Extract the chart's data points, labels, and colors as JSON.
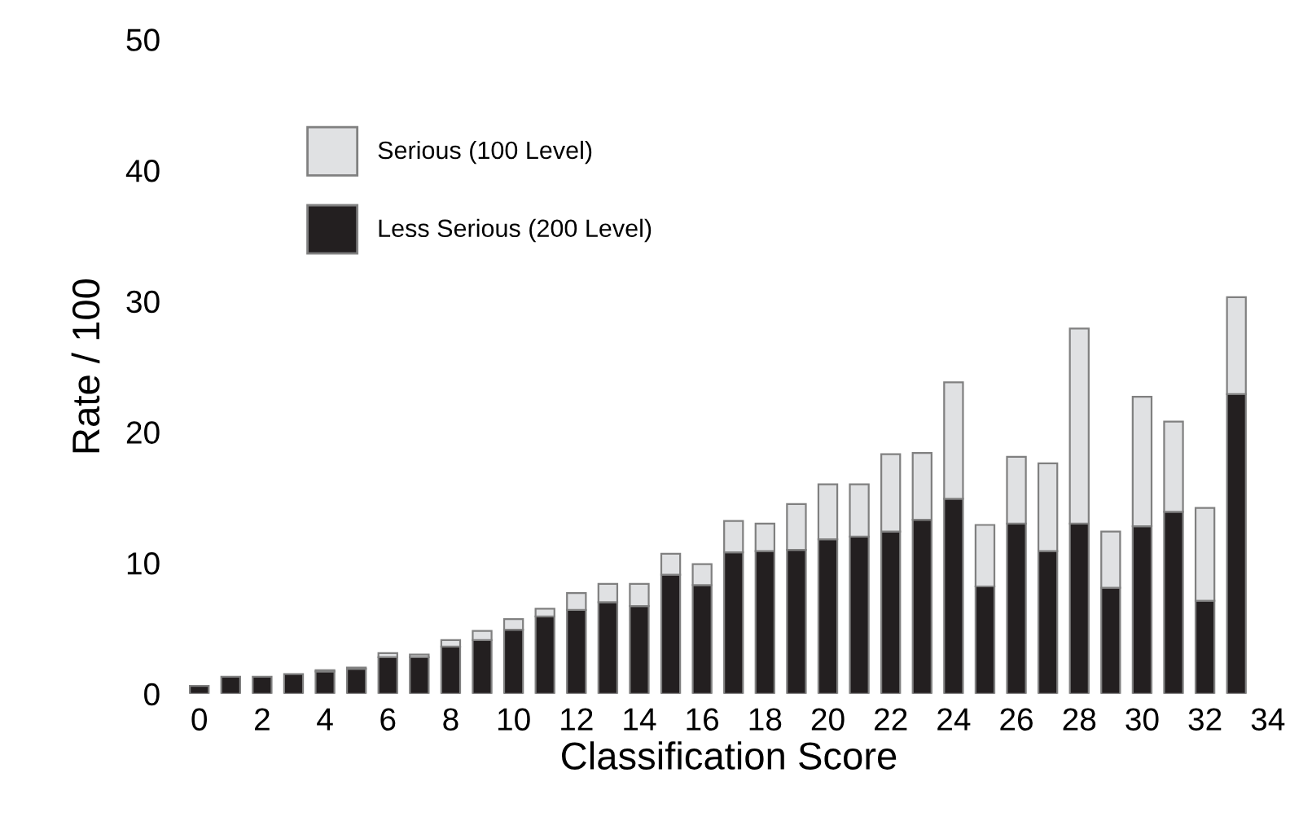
{
  "chart_data": {
    "type": "bar",
    "stacked": true,
    "xlabel": "Classification Score",
    "ylabel": "Rate / 100",
    "categories": [
      "0",
      null,
      "2",
      null,
      "4",
      null,
      "6",
      null,
      "8",
      null,
      "10",
      null,
      "12",
      null,
      "14",
      null,
      "16",
      null,
      "18",
      null,
      "20",
      null,
      "22",
      null,
      "24",
      null,
      "26",
      null,
      "28",
      null,
      "30",
      null,
      "32",
      null,
      "34"
    ],
    "series": [
      {
        "name": "Less Serious (200 Level)",
        "color": "#231f20",
        "values": [
          0.6,
          1.3,
          1.3,
          1.5,
          1.7,
          1.9,
          2.8,
          2.8,
          3.6,
          4.1,
          4.9,
          5.9,
          6.4,
          7.0,
          6.7,
          9.1,
          8.3,
          10.8,
          10.9,
          11.0,
          11.8,
          12.0,
          12.4,
          13.3,
          14.9,
          8.2,
          13.0,
          10.9,
          13.0,
          8.1,
          12.8,
          13.9,
          7.1,
          22.9,
          null
        ]
      },
      {
        "name": "Serious (100 Level)",
        "color": "#e0e1e3",
        "values": [
          0,
          0,
          0,
          0,
          0.1,
          0.1,
          0.3,
          0.2,
          0.5,
          0.7,
          0.8,
          0.6,
          1.3,
          1.4,
          1.7,
          1.6,
          1.6,
          2.4,
          2.1,
          3.5,
          4.2,
          4.0,
          5.9,
          5.1,
          8.9,
          4.7,
          5.1,
          6.7,
          14.9,
          4.3,
          9.9,
          6.9,
          7.1,
          7.4,
          null
        ]
      }
    ],
    "ylim": [
      0,
      50
    ],
    "yticks": [
      0,
      10,
      20,
      30,
      40,
      50
    ],
    "grid": false,
    "legend": "top left"
  }
}
